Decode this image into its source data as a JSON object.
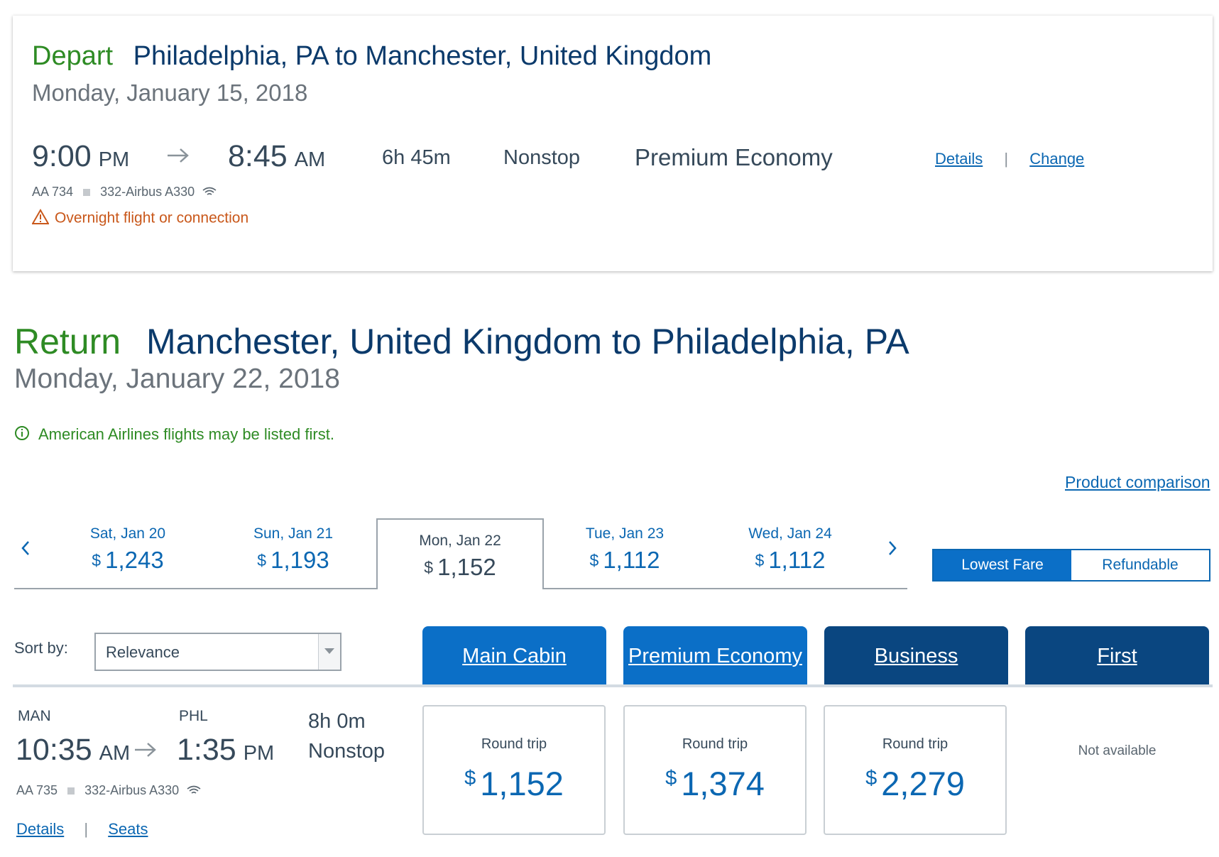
{
  "depart": {
    "label": "Depart",
    "route": "Philadelphia, PA to Manchester, United Kingdom",
    "date": "Monday, January 15, 2018",
    "dep_time": "9:00",
    "dep_ampm": "PM",
    "arr_time": "8:45",
    "arr_ampm": "AM",
    "duration": "6h 45m",
    "stops": "Nonstop",
    "cabin": "Premium Economy",
    "details_link": "Details",
    "separator": "|",
    "change_link": "Change",
    "flight_number": "AA 734",
    "aircraft": "332-Airbus A330",
    "warning": "Overnight flight or connection"
  },
  "return": {
    "label": "Return",
    "route": "Manchester, United Kingdom to Philadelphia, PA",
    "date": "Monday, January 22, 2018",
    "notice": "American Airlines flights may be listed first.",
    "product_comparison": "Product comparison"
  },
  "date_tabs": [
    {
      "label": "Sat, Jan 20",
      "currency": "$",
      "price": "1,243"
    },
    {
      "label": "Sun, Jan 21",
      "currency": "$",
      "price": "1,193"
    },
    {
      "label": "Mon, Jan 22",
      "currency": "$",
      "price": "1,152",
      "selected": true
    },
    {
      "label": "Tue, Jan 23",
      "currency": "$",
      "price": "1,112"
    },
    {
      "label": "Wed, Jan 24",
      "currency": "$",
      "price": "1,112"
    }
  ],
  "fare_toggle": {
    "lowest": "Lowest Fare",
    "refundable": "Refundable",
    "active": "Lowest Fare"
  },
  "sort": {
    "label": "Sort by:",
    "value": "Relevance"
  },
  "cabins": [
    "Main Cabin",
    "Premium Economy",
    "Business",
    "First"
  ],
  "result": {
    "origin": "MAN",
    "destination": "PHL",
    "dep_time": "10:35",
    "dep_ampm": "AM",
    "arr_time": "1:35",
    "arr_ampm": "PM",
    "duration": "8h 0m",
    "stops": "Nonstop",
    "flight_number": "AA 735",
    "aircraft": "332-Airbus A330",
    "details_link": "Details",
    "separator": "|",
    "seats_link": "Seats",
    "fares": [
      {
        "type": "Round trip",
        "currency": "$",
        "amount": "1,152"
      },
      {
        "type": "Round trip",
        "currency": "$",
        "amount": "1,374"
      },
      {
        "type": "Round trip",
        "currency": "$",
        "amount": "2,279"
      }
    ],
    "first_status": "Not available"
  },
  "icons": {
    "arrow": "right-arrow-icon",
    "warning": "warning-triangle-icon",
    "info": "info-circle-icon",
    "wifi": "wifi-icon"
  },
  "colors": {
    "brand_blue": "#0b67b2",
    "dark_blue": "#0a4680",
    "green": "#2e8b24",
    "warning": "#c9581b"
  }
}
